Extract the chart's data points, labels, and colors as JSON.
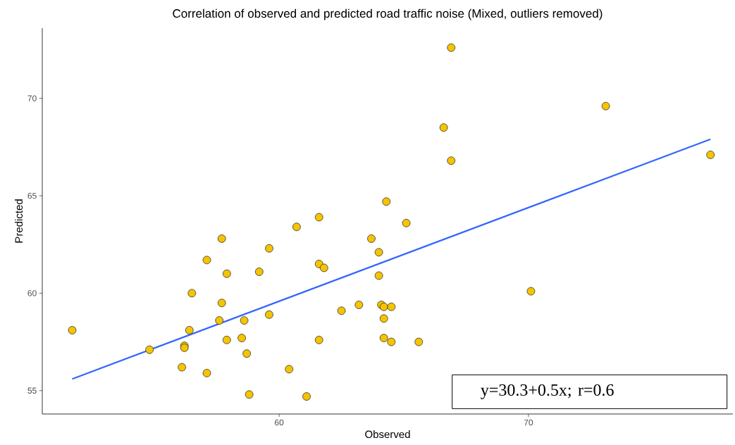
{
  "chart_data": {
    "type": "scatter",
    "title": "Correlation of observed and predicted road traffic noise (Mixed, outliers removed)",
    "xlabel": "Observed",
    "ylabel": "Predicted",
    "xlim": [
      50.5,
      78.2
    ],
    "ylim": [
      53.8,
      73.6
    ],
    "xticks": [
      60,
      70
    ],
    "yticks": [
      55,
      60,
      65,
      70
    ],
    "grid": false,
    "annotations": [
      "y=30.3+0.5x; r=0.6"
    ],
    "series": [
      {
        "type": "scatter",
        "marker": "circle",
        "color": "#f5c400",
        "x": [
          51.7,
          54.8,
          56.2,
          56.2,
          56.1,
          56.4,
          56.5,
          57.1,
          57.1,
          57.7,
          57.7,
          57.6,
          57.9,
          57.9,
          58.5,
          58.6,
          58.7,
          58.8,
          59.2,
          59.6,
          59.6,
          60.4,
          60.7,
          61.1,
          61.6,
          61.6,
          61.8,
          61.6,
          64.3,
          65.1,
          63.7,
          64.0,
          64.0,
          70.1,
          62.5,
          63.2,
          64.1,
          64.2,
          64.5,
          64.2,
          64.2,
          64.5,
          65.6,
          66.9,
          66.6,
          66.9,
          73.1,
          77.3
        ],
        "values": [
          58.1,
          57.1,
          57.3,
          57.2,
          56.2,
          58.1,
          60.0,
          61.7,
          55.9,
          62.8,
          59.5,
          58.6,
          61.0,
          57.6,
          57.7,
          58.6,
          56.9,
          54.8,
          61.1,
          62.3,
          58.9,
          56.1,
          63.4,
          54.7,
          63.9,
          61.5,
          61.3,
          57.6,
          64.7,
          63.6,
          62.8,
          62.1,
          60.9,
          60.1,
          59.1,
          59.4,
          59.4,
          59.3,
          59.3,
          58.7,
          57.7,
          57.5,
          57.5,
          72.6,
          68.5,
          66.8,
          69.6,
          67.1
        ]
      },
      {
        "type": "line",
        "color": "#3366ff",
        "marker": "none",
        "x": [
          51.7,
          77.3
        ],
        "values": [
          55.6,
          67.9
        ]
      }
    ]
  }
}
